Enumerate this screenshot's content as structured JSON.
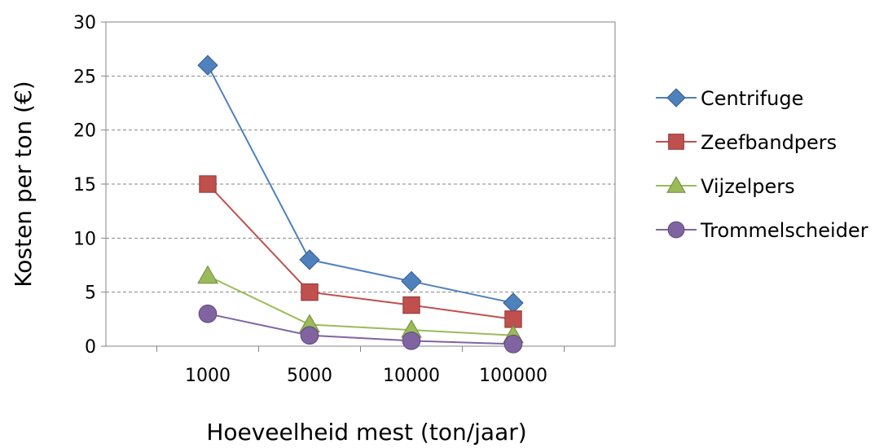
{
  "chart_data": {
    "type": "line",
    "title": "",
    "xlabel": "Hoeveelheid mest (ton/jaar)",
    "ylabel": "Kosten per ton (€)",
    "categories": [
      "1000",
      "5000",
      "10000",
      "100000"
    ],
    "ylim": [
      0,
      30
    ],
    "yticks": [
      "0",
      "5",
      "10",
      "15",
      "20",
      "25",
      "30"
    ],
    "grid": "horizontal dashed",
    "legend_position": "right",
    "series": [
      {
        "name": "Centrifuge",
        "values": [
          26,
          8,
          6,
          4
        ],
        "color": "#4f81bd",
        "marker": "diamond"
      },
      {
        "name": "Zeefbandpers",
        "values": [
          15,
          5,
          3.8,
          2.5
        ],
        "color": "#c0504d",
        "marker": "square"
      },
      {
        "name": "Vijzelpers",
        "values": [
          6.5,
          2,
          1.5,
          1
        ],
        "color": "#9bbb59",
        "marker": "triangle"
      },
      {
        "name": "Trommelscheider",
        "values": [
          3,
          1,
          0.5,
          0.2
        ],
        "color": "#8064a2",
        "marker": "circle"
      }
    ]
  }
}
